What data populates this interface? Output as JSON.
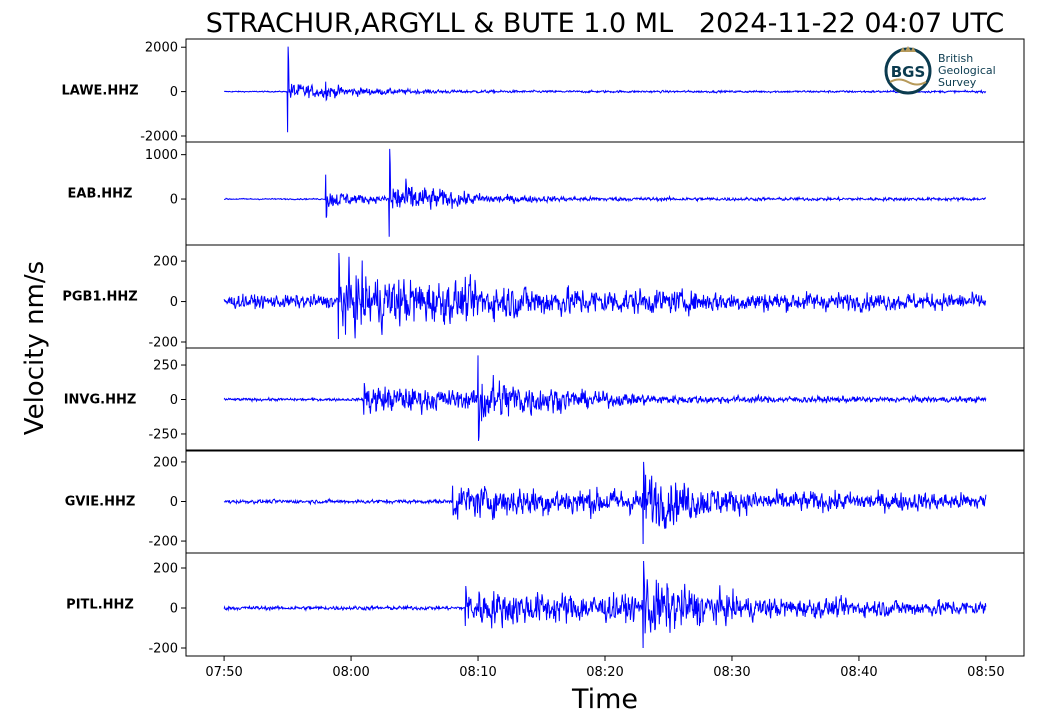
{
  "chart_data": {
    "type": "line",
    "title": "STRACHUR,ARGYLL & BUTE 1.0 ML   2024-11-22 04:07 UTC",
    "xlabel": "Time",
    "ylabel": "Velocity nm/s",
    "x_ticks": [
      "07:50",
      "08:00",
      "08:10",
      "08:20",
      "08:30",
      "08:40",
      "08:50"
    ],
    "xlim": [
      "07:47",
      "08:53"
    ],
    "data_start": "07:50",
    "data_end": "08:50",
    "color": "#0000ff",
    "grid": false,
    "logo": {
      "mark": "BGS",
      "text_lines": [
        "British",
        "Geological",
        "Survey"
      ],
      "ring_color": "#0b3b4f",
      "accent_color": "#b79a5a"
    },
    "series": [
      {
        "name": "LAWE.HHZ",
        "ylim": [
          -2000,
          2100
        ],
        "yticks": [
          {
            "v": 2000,
            "label": "2000"
          },
          {
            "v": 0,
            "label": "0"
          },
          {
            "v": -2000,
            "label": "-2000"
          }
        ],
        "noise_pre": 20,
        "events": [
          {
            "t": "07:55",
            "peak_hi": 2030,
            "peak_lo": -1830,
            "envelope": 350,
            "decay_min": 3.5,
            "floor": 40
          },
          {
            "t": "07:58",
            "peak_hi": 450,
            "peak_lo": -380,
            "envelope": 220,
            "decay_min": 4.5,
            "floor": 40
          }
        ]
      },
      {
        "name": "EAB.HHZ",
        "ylim": [
          -900,
          1150
        ],
        "yticks": [
          {
            "v": 1000,
            "label": "1000"
          },
          {
            "v": 0,
            "label": "0"
          }
        ],
        "noise_pre": 12,
        "events": [
          {
            "t": "07:58",
            "peak_hi": 550,
            "peak_lo": -420,
            "envelope": 180,
            "decay_min": 2.5,
            "floor": 30
          },
          {
            "t": "08:03",
            "peak_hi": 1130,
            "peak_lo": -850,
            "envelope": 380,
            "decay_min": 4.5,
            "floor": 30
          }
        ]
      },
      {
        "name": "PGB1.HHZ",
        "ylim": [
          -200,
          250
        ],
        "yticks": [
          {
            "v": 200,
            "label": "200"
          },
          {
            "v": 0,
            "label": "0"
          },
          {
            "v": -200,
            "label": "-200"
          }
        ],
        "noise_pre": 28,
        "events": [
          {
            "t": "07:59",
            "peak_hi": 240,
            "peak_lo": -185,
            "envelope": 100,
            "decay_min": 15,
            "floor": 30
          }
        ]
      },
      {
        "name": "INVG.HHZ",
        "ylim": [
          -330,
          330
        ],
        "yticks": [
          {
            "v": 250,
            "label": "250"
          },
          {
            "v": 0,
            "label": "0"
          },
          {
            "v": -250,
            "label": "-250"
          }
        ],
        "noise_pre": 8,
        "events": [
          {
            "t": "08:01",
            "peak_hi": 120,
            "peak_lo": -110,
            "envelope": 80,
            "decay_min": 12,
            "floor": 15
          },
          {
            "t": "08:10",
            "peak_hi": 320,
            "peak_lo": -300,
            "envelope": 160,
            "decay_min": 6,
            "floor": 15
          }
        ]
      },
      {
        "name": "GVIE.HHZ",
        "ylim": [
          -230,
          230
        ],
        "yticks": [
          {
            "v": 200,
            "label": "200"
          },
          {
            "v": 0,
            "label": "0"
          },
          {
            "v": -200,
            "label": "-200"
          }
        ],
        "noise_pre": 8,
        "events": [
          {
            "t": "08:08",
            "peak_hi": 80,
            "peak_lo": -70,
            "envelope": 45,
            "decay_min": 30,
            "floor": 25
          },
          {
            "t": "08:23",
            "peak_hi": 200,
            "peak_lo": -215,
            "envelope": 110,
            "decay_min": 5,
            "floor": 25
          }
        ]
      },
      {
        "name": "PITL.HHZ",
        "ylim": [
          -210,
          245
        ],
        "yticks": [
          {
            "v": 200,
            "label": "200"
          },
          {
            "v": 0,
            "label": "0"
          },
          {
            "v": -200,
            "label": "-200"
          }
        ],
        "noise_pre": 8,
        "events": [
          {
            "t": "08:09",
            "peak_hi": 110,
            "peak_lo": -90,
            "envelope": 60,
            "decay_min": 25,
            "floor": 20
          },
          {
            "t": "08:23",
            "peak_hi": 235,
            "peak_lo": -200,
            "envelope": 120,
            "decay_min": 6,
            "floor": 20
          }
        ]
      }
    ]
  }
}
